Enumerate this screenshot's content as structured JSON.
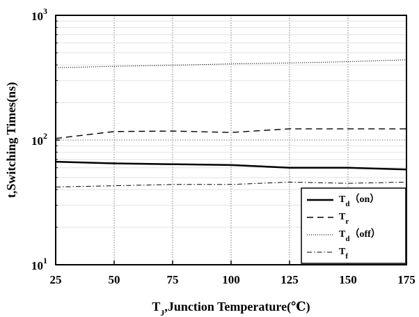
{
  "chart_data": {
    "type": "line",
    "xlabel_main": "T",
    "xlabel_sub": "J",
    "xlabel_rest": ",Junction Temperature(℃)",
    "ylabel": "t,Switching Times(ns)",
    "xlim": [
      25,
      175
    ],
    "ylim": [
      10,
      1000
    ],
    "yscale": "log",
    "grid": true,
    "legend_position": "lower-right",
    "x_ticks": [
      "25",
      "50",
      "75",
      "100",
      "125",
      "150",
      "175"
    ],
    "y_ticks": [
      {
        "value": 10,
        "base": "10",
        "exp": "1"
      },
      {
        "value": 100,
        "base": "10",
        "exp": "2"
      },
      {
        "value": 1000,
        "base": "10",
        "exp": "3"
      }
    ],
    "x": [
      25,
      50,
      75,
      100,
      125,
      150,
      175
    ],
    "series": [
      {
        "name_main": "T",
        "name_sub": "d",
        "name_rest": "（on）",
        "style": "solid",
        "values": [
          67,
          65,
          64,
          63,
          60,
          60,
          58
        ]
      },
      {
        "name_main": "T",
        "name_sub": "r",
        "name_rest": "",
        "style": "dashed",
        "values": [
          103,
          117,
          118,
          115,
          123,
          123,
          123
        ]
      },
      {
        "name_main": "T",
        "name_sub": "d",
        "name_rest": "（off）",
        "style": "dotted",
        "values": [
          380,
          390,
          398,
          408,
          415,
          425,
          440
        ]
      },
      {
        "name_main": "T",
        "name_sub": "f",
        "name_rest": "",
        "style": "dashdot",
        "values": [
          42,
          43,
          44,
          44,
          46,
          45,
          46
        ]
      }
    ]
  }
}
